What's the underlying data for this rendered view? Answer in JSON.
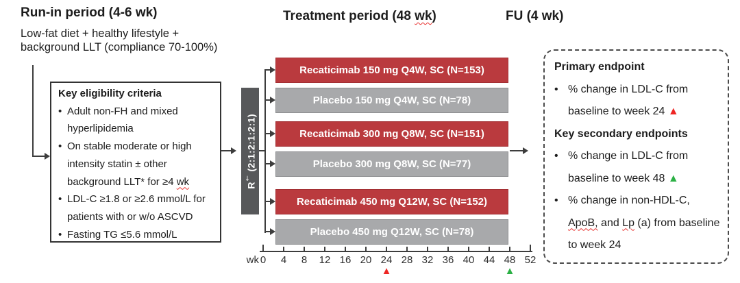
{
  "colors": {
    "active_arm": "#ba3a3e",
    "active_arm_border": "#a32f33",
    "placebo_arm": "#a8a9ab",
    "placebo_arm_border": "#8c8d8f",
    "randomization_bar": "#57585a",
    "marker_red": "#ee2624",
    "marker_green": "#2cb045"
  },
  "run_in": {
    "title": "Run-in period (4-6 wk)",
    "subtitle_line1": "Low-fat diet + healthy lifestyle +",
    "subtitle_line2": "background LLT (compliance 70-100%)"
  },
  "treatment_header": {
    "segments": [
      {
        "t": "Treatment period (48 "
      },
      {
        "t": "wk",
        "wavy": true
      },
      {
        "t": ")"
      }
    ]
  },
  "fu_header": "FU (4 wk)",
  "eligibility": {
    "title": "Key eligibility criteria",
    "items": [
      {
        "segments": [
          {
            "t": "Adult non-FH and mixed hyperlipidemia"
          }
        ]
      },
      {
        "segments": [
          {
            "t": "On stable moderate or high intensity statin ± other background LLT* for ≥4 "
          },
          {
            "t": "wk",
            "wavy": true
          }
        ]
      },
      {
        "segments": [
          {
            "t": "LDL-C ≥1.8 or ≥2.6 mmol/L for patients with or w/o ASCVD"
          }
        ]
      },
      {
        "segments": [
          {
            "t": "Fasting TG ≤5.6 mmol/L"
          }
        ]
      }
    ]
  },
  "randomization": {
    "label_segments": [
      {
        "t": "R"
      },
      {
        "t": "†",
        "sup": true
      },
      {
        "t": " (2:1:2:1:2:1)"
      }
    ]
  },
  "arms": [
    {
      "label": "Recaticimab 150 mg Q4W, SC (N=153)",
      "type": "active"
    },
    {
      "label": "Placebo 150 mg Q4W, SC (N=78)",
      "type": "placebo"
    },
    {
      "label": "Recaticimab 300 mg Q8W, SC (N=151)",
      "type": "active"
    },
    {
      "label": "Placebo 300 mg Q8W, SC (N=77)",
      "type": "placebo"
    },
    {
      "label": "Recaticimab 450 mg Q12W, SC (N=152)",
      "type": "active"
    },
    {
      "label": "Placebo 450 mg Q12W, SC (N=78)",
      "type": "placebo"
    }
  ],
  "timeline": {
    "unit_label": "wk",
    "tick_labels": [
      "0",
      "4",
      "8",
      "12",
      "16",
      "20",
      "24",
      "28",
      "32",
      "36",
      "40",
      "44",
      "48",
      "52"
    ],
    "markers": [
      {
        "week": 24,
        "glyph": "▲",
        "color": "#ee2624"
      },
      {
        "week": 48,
        "glyph": "▲",
        "color": "#2cb045"
      }
    ]
  },
  "endpoints": {
    "primary_title": "Primary endpoint",
    "primary_items": [
      {
        "segments": [
          {
            "t": "% change in LDL-C from baseline to week 24 "
          },
          {
            "t": "▲",
            "color": "#ee2624"
          }
        ]
      }
    ],
    "secondary_title": "Key secondary endpoints",
    "secondary_items": [
      {
        "segments": [
          {
            "t": "% change in LDL-C from baseline to week 48 "
          },
          {
            "t": "▲",
            "color": "#2cb045"
          }
        ]
      },
      {
        "segments": [
          {
            "t": "% change in non-HDL-C, "
          },
          {
            "t": "ApoB,",
            "wavy": true
          },
          {
            "t": " and "
          },
          {
            "t": "Lp",
            "wavy": true
          },
          {
            "t": " (a) from baseline to week 24"
          }
        ]
      }
    ]
  }
}
